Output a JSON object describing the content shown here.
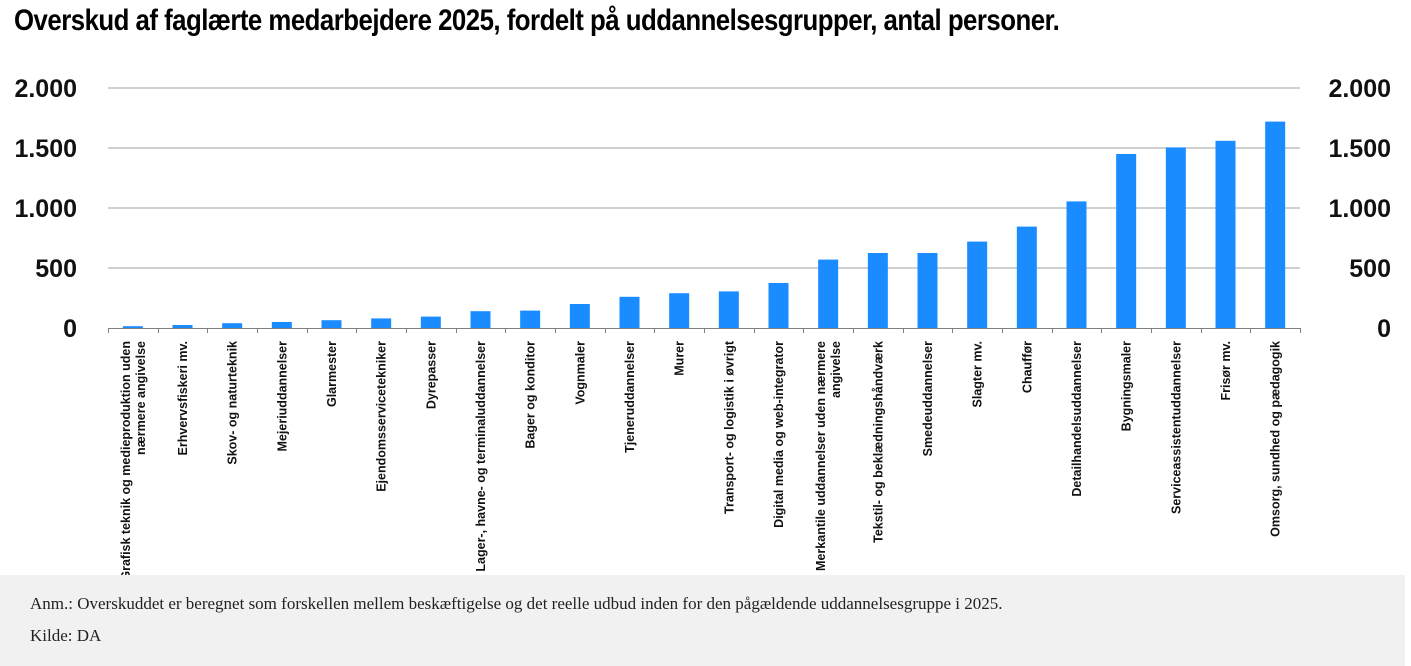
{
  "title": "Overskud af faglærte medarbejdere 2025, fordelt på uddannelsesgrupper, antal personer.",
  "notes": {
    "anm": "Anm.: Overskuddet er beregnet som forskellen mellem beskæftigelse og det reelle udbud inden for den pågældende uddannelsesgruppe i 2025.",
    "source": "Kilde: DA"
  },
  "colors": {
    "bar": "#1a8cff",
    "grid": "#a0a0a0",
    "axis": "#808080"
  },
  "chart_data": {
    "type": "bar",
    "title": "Overskud af faglærte medarbejdere 2025, fordelt på uddannelsesgrupper, antal personer.",
    "xlabel": "",
    "ylabel": "",
    "ylim": [
      0,
      2000
    ],
    "yticks": [
      0,
      500,
      1000,
      1500,
      2000
    ],
    "ytick_labels": [
      "0",
      "500",
      "1.000",
      "1.500",
      "2.000"
    ],
    "y_axis_both_sides": true,
    "grid": true,
    "legend": "none",
    "categories": [
      [
        "Grafisk teknik og medieproduktion uden",
        "nærmere angivelse"
      ],
      [
        "Erhvervsfiskeri mv."
      ],
      [
        "Skov- og naturteknik"
      ],
      [
        "Mejeriuddannelser"
      ],
      [
        "Glarmester"
      ],
      [
        "Ejendomsservicetekniker"
      ],
      [
        "Dyrepasser"
      ],
      [
        "Lager-, havne- og terminaluddannelser"
      ],
      [
        "Bager og konditor"
      ],
      [
        "Vognmaler"
      ],
      [
        "Tjeneruddannelser"
      ],
      [
        "Murer"
      ],
      [
        "Transport- og logistik i øvrigt"
      ],
      [
        "Digital media og web-integrator"
      ],
      [
        "Merkantile uddannelser uden nærmere",
        "angivelse"
      ],
      [
        "Tekstil- og beklædningshåndværk"
      ],
      [
        "Smedeuddannelser"
      ],
      [
        "Slagter mv."
      ],
      [
        "Chauffør"
      ],
      [
        "Detailhandelsuddannelser"
      ],
      [
        "Bygningsmaler"
      ],
      [
        "Serviceassistentuddannelser"
      ],
      [
        "Frisør mv."
      ],
      [
        "Omsorg, sundhed og pædagogik"
      ]
    ],
    "values": [
      15,
      25,
      40,
      50,
      65,
      80,
      95,
      140,
      145,
      200,
      260,
      290,
      305,
      375,
      570,
      625,
      625,
      720,
      845,
      1055,
      1450,
      1505,
      1560,
      1720
    ]
  }
}
